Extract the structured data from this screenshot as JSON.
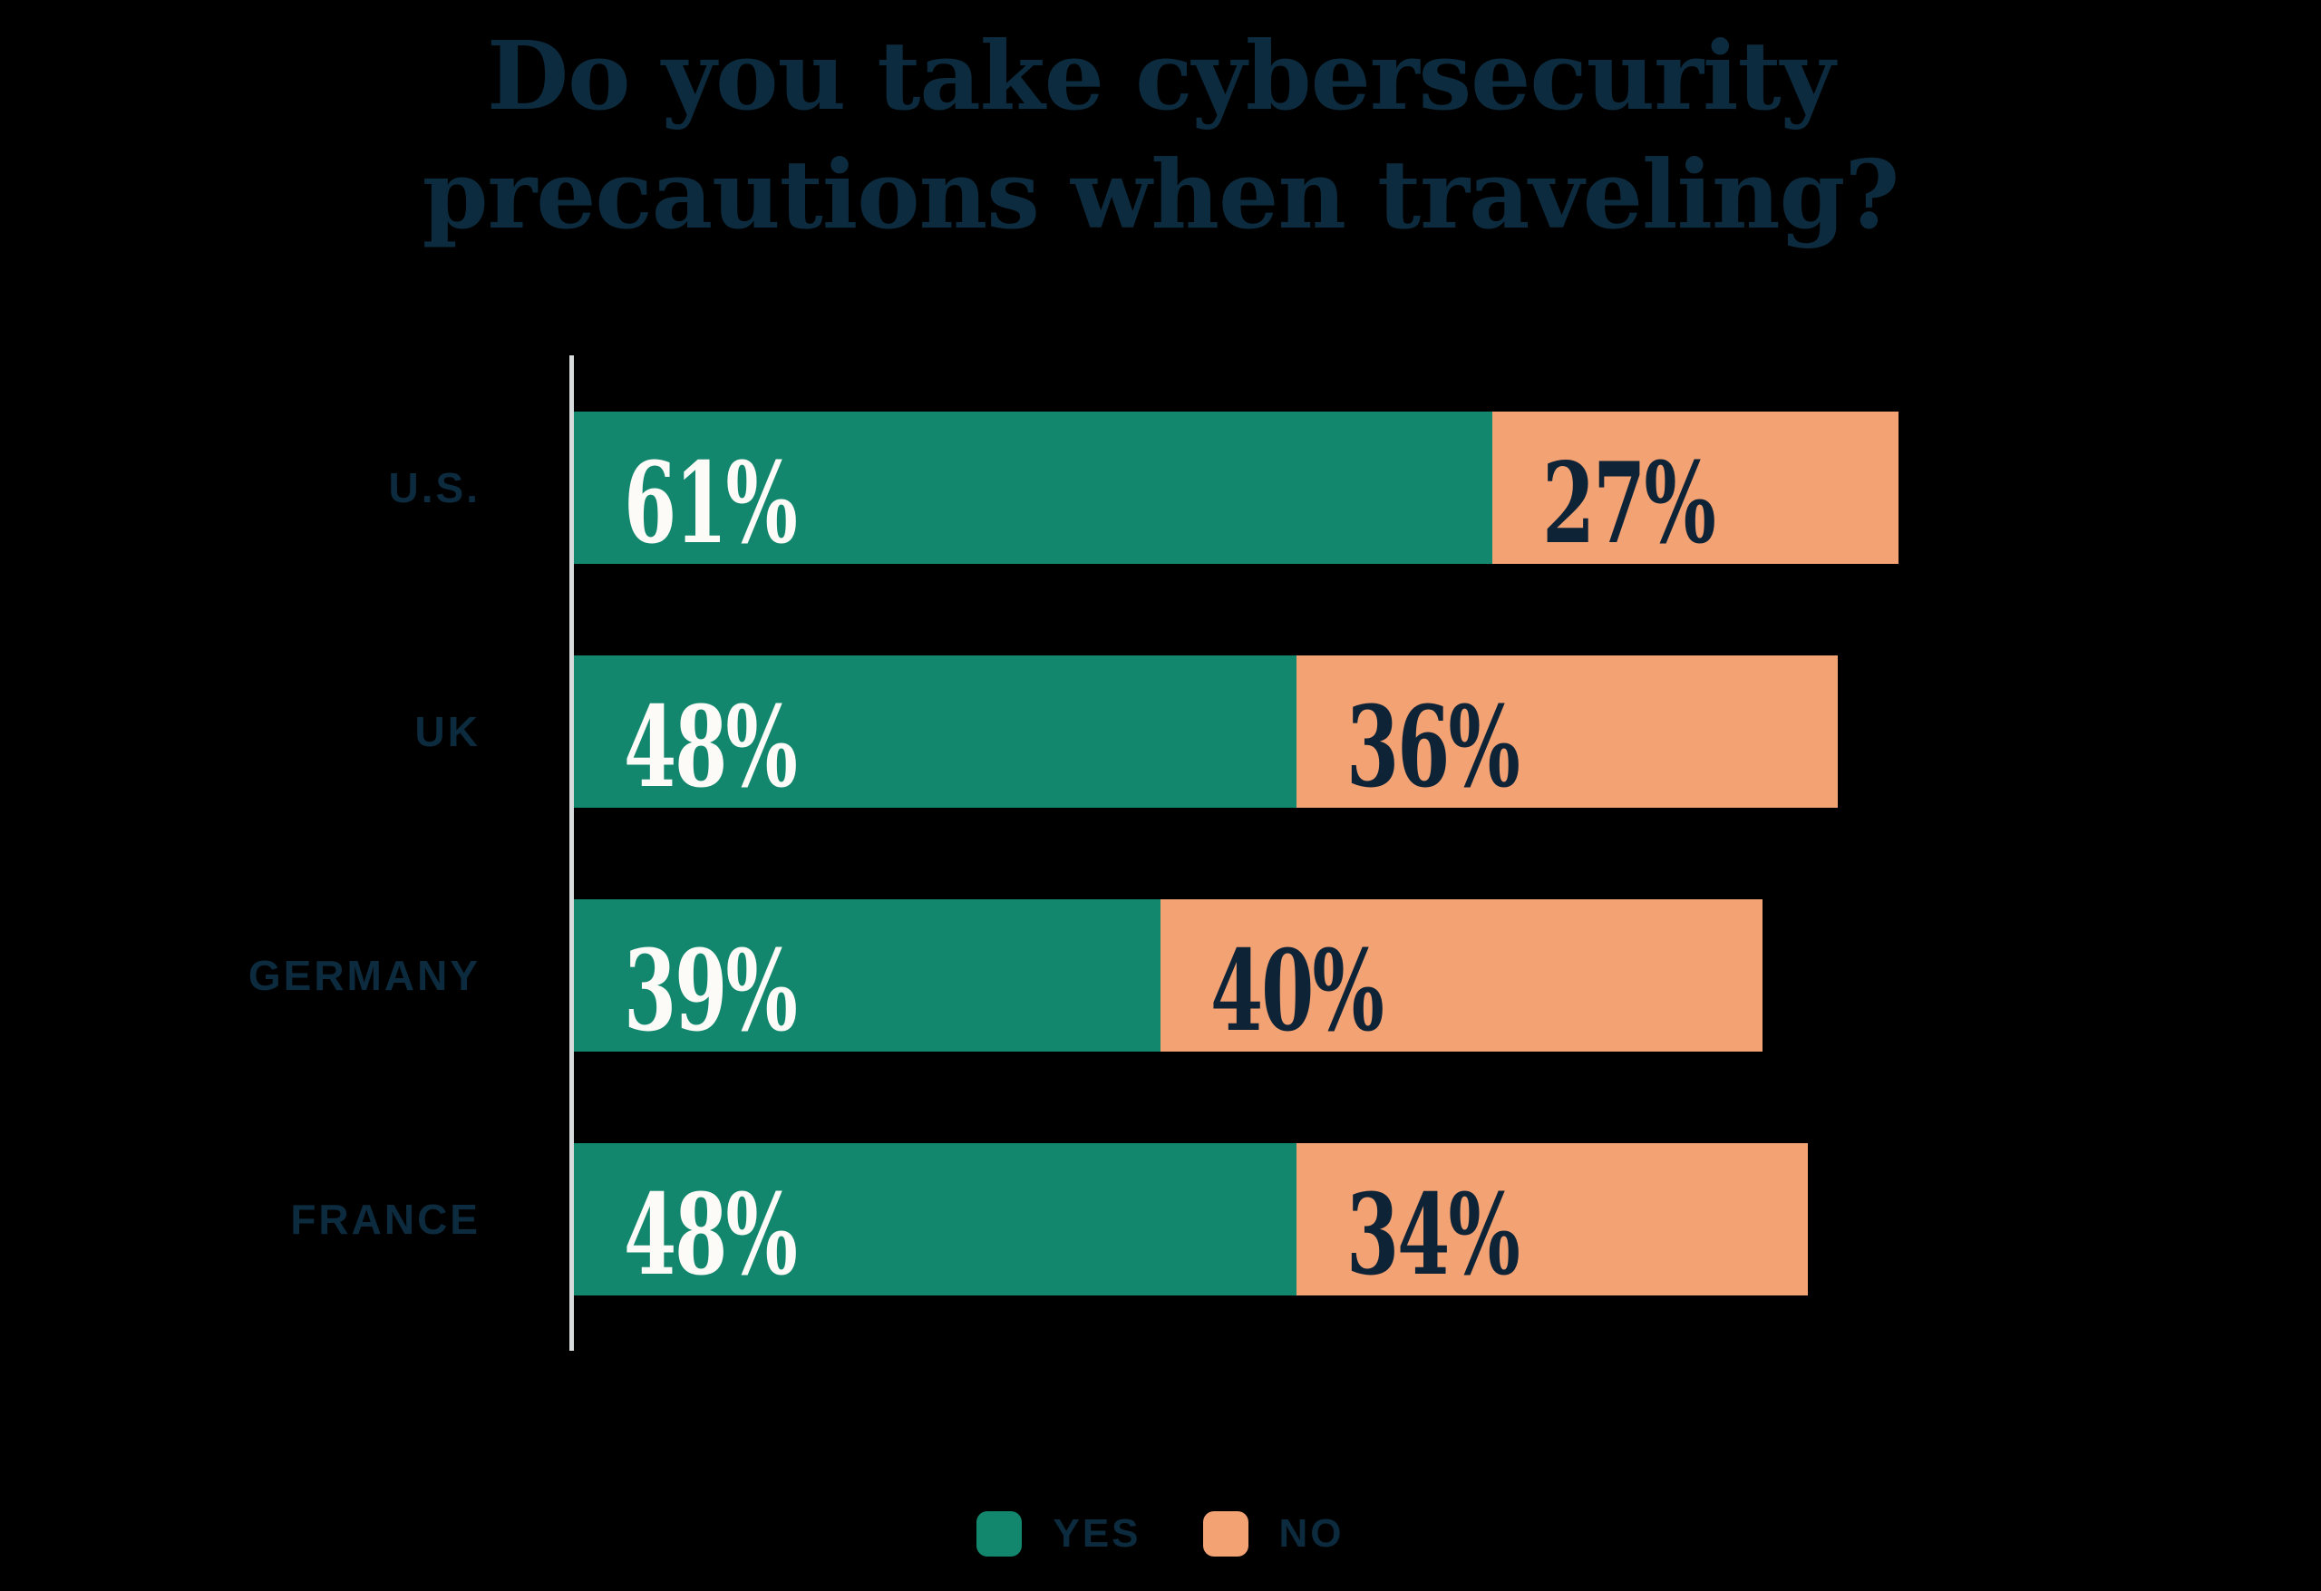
{
  "title": "Do you take cybersecurity\nprecautions when traveling?",
  "colors": {
    "background": "#000000",
    "yes": "#12876D",
    "no": "#F3A274",
    "navy_text": "#0D2B3E",
    "number_on_yes": "#FCFBF7",
    "number_on_no": "#0E2336",
    "axis": "#D8DBDC"
  },
  "rows": [
    {
      "label": "U.S.",
      "yes": 61,
      "no": 27,
      "yes_label": "61%",
      "no_label": "27%"
    },
    {
      "label": "UK",
      "yes": 48,
      "no": 36,
      "yes_label": "48%",
      "no_label": "36%"
    },
    {
      "label": "GERMANY",
      "yes": 39,
      "no": 40,
      "yes_label": "39%",
      "no_label": "40%"
    },
    {
      "label": "FRANCE",
      "yes": 48,
      "no": 34,
      "yes_label": "48%",
      "no_label": "34%"
    }
  ],
  "legend": [
    {
      "label": "YES",
      "color": "#12876D"
    },
    {
      "label": "NO",
      "color": "#F3A274"
    }
  ],
  "chart_data": {
    "type": "bar",
    "orientation": "horizontal",
    "stacked": true,
    "title": "Do you take cybersecurity precautions when traveling?",
    "categories": [
      "U.S.",
      "UK",
      "GERMANY",
      "FRANCE"
    ],
    "series": [
      {
        "name": "YES",
        "color": "#12876D",
        "values": [
          61,
          48,
          39,
          48
        ]
      },
      {
        "name": "NO",
        "color": "#F3A274",
        "values": [
          27,
          36,
          40,
          34
        ]
      }
    ],
    "value_labels": {
      "YES": [
        "61%",
        "48%",
        "39%",
        "48%"
      ],
      "NO": [
        "27%",
        "36%",
        "40%",
        "34%"
      ]
    },
    "unit": "percent",
    "xlim": [
      0,
      100
    ],
    "grid": false,
    "legend_position": "bottom"
  }
}
